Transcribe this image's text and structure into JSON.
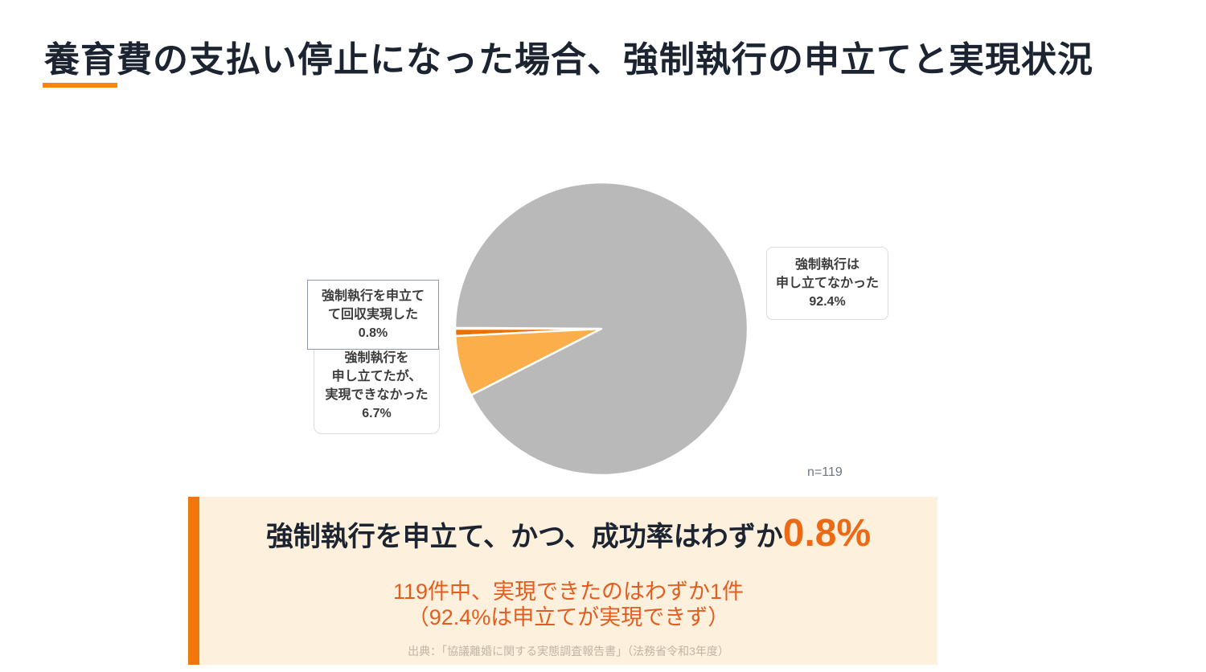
{
  "page": {
    "title": "養育費の支払い停止になった場合、強制執行の申立てと実現状況",
    "accent_color": "#f8860b",
    "title_color": "#1b2430"
  },
  "chart_data": {
    "type": "pie",
    "title": "養育費の支払い停止になった場合、強制執行の申立てと実現状況",
    "sample_size_label": "n=119",
    "start_angle_deg": 180,
    "direction": "counterclockwise-on-screen",
    "legend_position": "callout-boxes",
    "slices": [
      {
        "label": "強制執行を申立てて回収実現した",
        "value": 0.8,
        "color": "#ed7100"
      },
      {
        "label": "強制執行を申し立てたが、実現できなかった",
        "value": 6.7,
        "color": "#fcae4a"
      },
      {
        "label": "強制執行は申し立てなかった",
        "value": 92.4,
        "color": "#b9b9b9"
      }
    ]
  },
  "labels": {
    "right_box": {
      "line1": "強制執行は",
      "line2": "申し立てなかった",
      "value": "92.4%"
    },
    "left_top_box": {
      "line1": "強制執行を申立て",
      "line2": "て回収実現した",
      "value": "0.8%"
    },
    "left_bottom_box": {
      "line1": "強制執行を",
      "line2": "申し立てたが、",
      "line3": "実現できなかった",
      "value": "6.7%"
    },
    "sample_size": "n=119"
  },
  "callout": {
    "background_color": "#fdf0dd",
    "bar_color": "#f1770d",
    "headline_text": "強制執行を申立て、かつ、成功率はわずか",
    "headline_value": "0.8%",
    "headline_value_color": "#ec6a15",
    "subline1": "119件中、実現できたのはわずか1件",
    "subline2": "（92.4%は申立てが実現できず）",
    "subline_color": "#e45d20",
    "source": "出典：「協議離婚に関する実態調査報告書」（法務省令和3年度）",
    "source_color": "#c0b4a3"
  }
}
